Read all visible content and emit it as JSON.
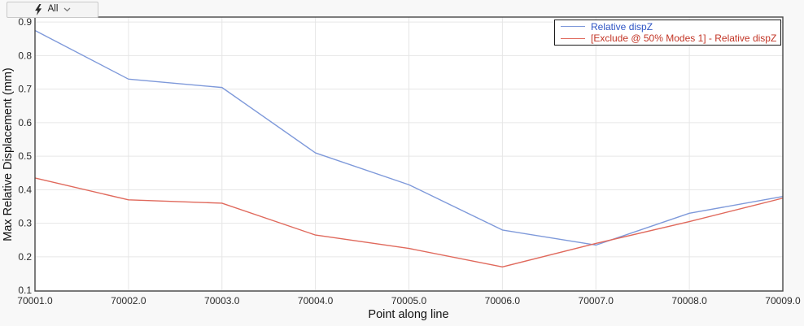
{
  "toolbar": {
    "all_label": "All",
    "icons": [
      "lightning-bolt-icon",
      "chevron-down-icon"
    ]
  },
  "chart_data": {
    "type": "line",
    "title": "",
    "xlabel": "Point along line",
    "ylabel": "Max Relative Displacement (mm)",
    "x": [
      70001,
      70002,
      70003,
      70004,
      70005,
      70006,
      70007,
      70008,
      70009
    ],
    "series": [
      {
        "name": "Relative dispZ",
        "color": "#7e99da",
        "label_color": "#2f55c4",
        "values": [
          0.875,
          0.73,
          0.705,
          0.51,
          0.415,
          0.28,
          0.235,
          0.33,
          0.38
        ]
      },
      {
        "name": "[Exclude @ 50% Modes 1] - Relative dispZ",
        "color": "#e0695c",
        "label_color": "#c23425",
        "values": [
          0.435,
          0.37,
          0.36,
          0.265,
          0.225,
          0.17,
          0.24,
          0.305,
          0.375
        ]
      }
    ],
    "xlim": [
      70001,
      70009
    ],
    "ylim": [
      0.098,
      0.915
    ],
    "xtick_values": [
      70001,
      70002,
      70003,
      70004,
      70005,
      70006,
      70007,
      70008,
      70009
    ],
    "xtick_labels": [
      "70001.0",
      "70002.0",
      "70003.0",
      "70004.0",
      "70005.0",
      "70006.0",
      "70007.0",
      "70008.0",
      "70009.0"
    ],
    "ytick_values": [
      0.1,
      0.2,
      0.3,
      0.4,
      0.5,
      0.6,
      0.7,
      0.8,
      0.9
    ],
    "ytick_labels": [
      "0.1",
      "0.2",
      "0.3",
      "0.4",
      "0.5",
      "0.6",
      "0.7",
      "0.8",
      "0.9"
    ],
    "grid": true,
    "legend_position": "top-right"
  },
  "colors": {
    "page_bg": "#f8f8f8",
    "plot_bg": "#ffffff",
    "plot_border": "#474747",
    "grid": "#e6e6e6",
    "tick_text": "#2b2b2b",
    "axis_title_text": "#111111",
    "legend_border": "#1a1a1a",
    "toolbar_bg": "#f4f4f4",
    "toolbar_border": "#c9c9c9"
  }
}
